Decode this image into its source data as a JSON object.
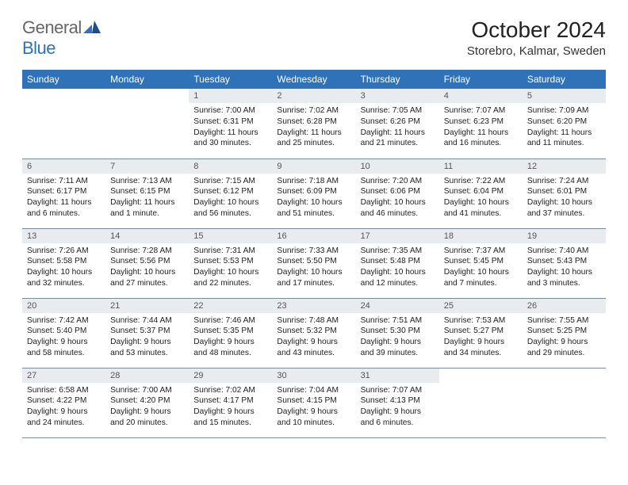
{
  "logo": {
    "part1": "General",
    "part2": "Blue"
  },
  "title": "October 2024",
  "location": "Storebro, Kalmar, Sweden",
  "colors": {
    "header_bg": "#2f72b8",
    "daynum_bg": "#e8ecef",
    "border": "#7a8a9a"
  },
  "weekdays": [
    "Sunday",
    "Monday",
    "Tuesday",
    "Wednesday",
    "Thursday",
    "Friday",
    "Saturday"
  ],
  "weeks": [
    [
      {
        "empty": true
      },
      {
        "empty": true
      },
      {
        "n": "1",
        "sr": "7:00 AM",
        "ss": "6:31 PM",
        "dl": "11 hours and 30 minutes."
      },
      {
        "n": "2",
        "sr": "7:02 AM",
        "ss": "6:28 PM",
        "dl": "11 hours and 25 minutes."
      },
      {
        "n": "3",
        "sr": "7:05 AM",
        "ss": "6:26 PM",
        "dl": "11 hours and 21 minutes."
      },
      {
        "n": "4",
        "sr": "7:07 AM",
        "ss": "6:23 PM",
        "dl": "11 hours and 16 minutes."
      },
      {
        "n": "5",
        "sr": "7:09 AM",
        "ss": "6:20 PM",
        "dl": "11 hours and 11 minutes."
      }
    ],
    [
      {
        "n": "6",
        "sr": "7:11 AM",
        "ss": "6:17 PM",
        "dl": "11 hours and 6 minutes."
      },
      {
        "n": "7",
        "sr": "7:13 AM",
        "ss": "6:15 PM",
        "dl": "11 hours and 1 minute."
      },
      {
        "n": "8",
        "sr": "7:15 AM",
        "ss": "6:12 PM",
        "dl": "10 hours and 56 minutes."
      },
      {
        "n": "9",
        "sr": "7:18 AM",
        "ss": "6:09 PM",
        "dl": "10 hours and 51 minutes."
      },
      {
        "n": "10",
        "sr": "7:20 AM",
        "ss": "6:06 PM",
        "dl": "10 hours and 46 minutes."
      },
      {
        "n": "11",
        "sr": "7:22 AM",
        "ss": "6:04 PM",
        "dl": "10 hours and 41 minutes."
      },
      {
        "n": "12",
        "sr": "7:24 AM",
        "ss": "6:01 PM",
        "dl": "10 hours and 37 minutes."
      }
    ],
    [
      {
        "n": "13",
        "sr": "7:26 AM",
        "ss": "5:58 PM",
        "dl": "10 hours and 32 minutes."
      },
      {
        "n": "14",
        "sr": "7:28 AM",
        "ss": "5:56 PM",
        "dl": "10 hours and 27 minutes."
      },
      {
        "n": "15",
        "sr": "7:31 AM",
        "ss": "5:53 PM",
        "dl": "10 hours and 22 minutes."
      },
      {
        "n": "16",
        "sr": "7:33 AM",
        "ss": "5:50 PM",
        "dl": "10 hours and 17 minutes."
      },
      {
        "n": "17",
        "sr": "7:35 AM",
        "ss": "5:48 PM",
        "dl": "10 hours and 12 minutes."
      },
      {
        "n": "18",
        "sr": "7:37 AM",
        "ss": "5:45 PM",
        "dl": "10 hours and 7 minutes."
      },
      {
        "n": "19",
        "sr": "7:40 AM",
        "ss": "5:43 PM",
        "dl": "10 hours and 3 minutes."
      }
    ],
    [
      {
        "n": "20",
        "sr": "7:42 AM",
        "ss": "5:40 PM",
        "dl": "9 hours and 58 minutes."
      },
      {
        "n": "21",
        "sr": "7:44 AM",
        "ss": "5:37 PM",
        "dl": "9 hours and 53 minutes."
      },
      {
        "n": "22",
        "sr": "7:46 AM",
        "ss": "5:35 PM",
        "dl": "9 hours and 48 minutes."
      },
      {
        "n": "23",
        "sr": "7:48 AM",
        "ss": "5:32 PM",
        "dl": "9 hours and 43 minutes."
      },
      {
        "n": "24",
        "sr": "7:51 AM",
        "ss": "5:30 PM",
        "dl": "9 hours and 39 minutes."
      },
      {
        "n": "25",
        "sr": "7:53 AM",
        "ss": "5:27 PM",
        "dl": "9 hours and 34 minutes."
      },
      {
        "n": "26",
        "sr": "7:55 AM",
        "ss": "5:25 PM",
        "dl": "9 hours and 29 minutes."
      }
    ],
    [
      {
        "n": "27",
        "sr": "6:58 AM",
        "ss": "4:22 PM",
        "dl": "9 hours and 24 minutes."
      },
      {
        "n": "28",
        "sr": "7:00 AM",
        "ss": "4:20 PM",
        "dl": "9 hours and 20 minutes."
      },
      {
        "n": "29",
        "sr": "7:02 AM",
        "ss": "4:17 PM",
        "dl": "9 hours and 15 minutes."
      },
      {
        "n": "30",
        "sr": "7:04 AM",
        "ss": "4:15 PM",
        "dl": "9 hours and 10 minutes."
      },
      {
        "n": "31",
        "sr": "7:07 AM",
        "ss": "4:13 PM",
        "dl": "9 hours and 6 minutes."
      },
      {
        "empty": true
      },
      {
        "empty": true
      }
    ]
  ],
  "labels": {
    "sunrise": "Sunrise: ",
    "sunset": "Sunset: ",
    "daylight": "Daylight: "
  }
}
